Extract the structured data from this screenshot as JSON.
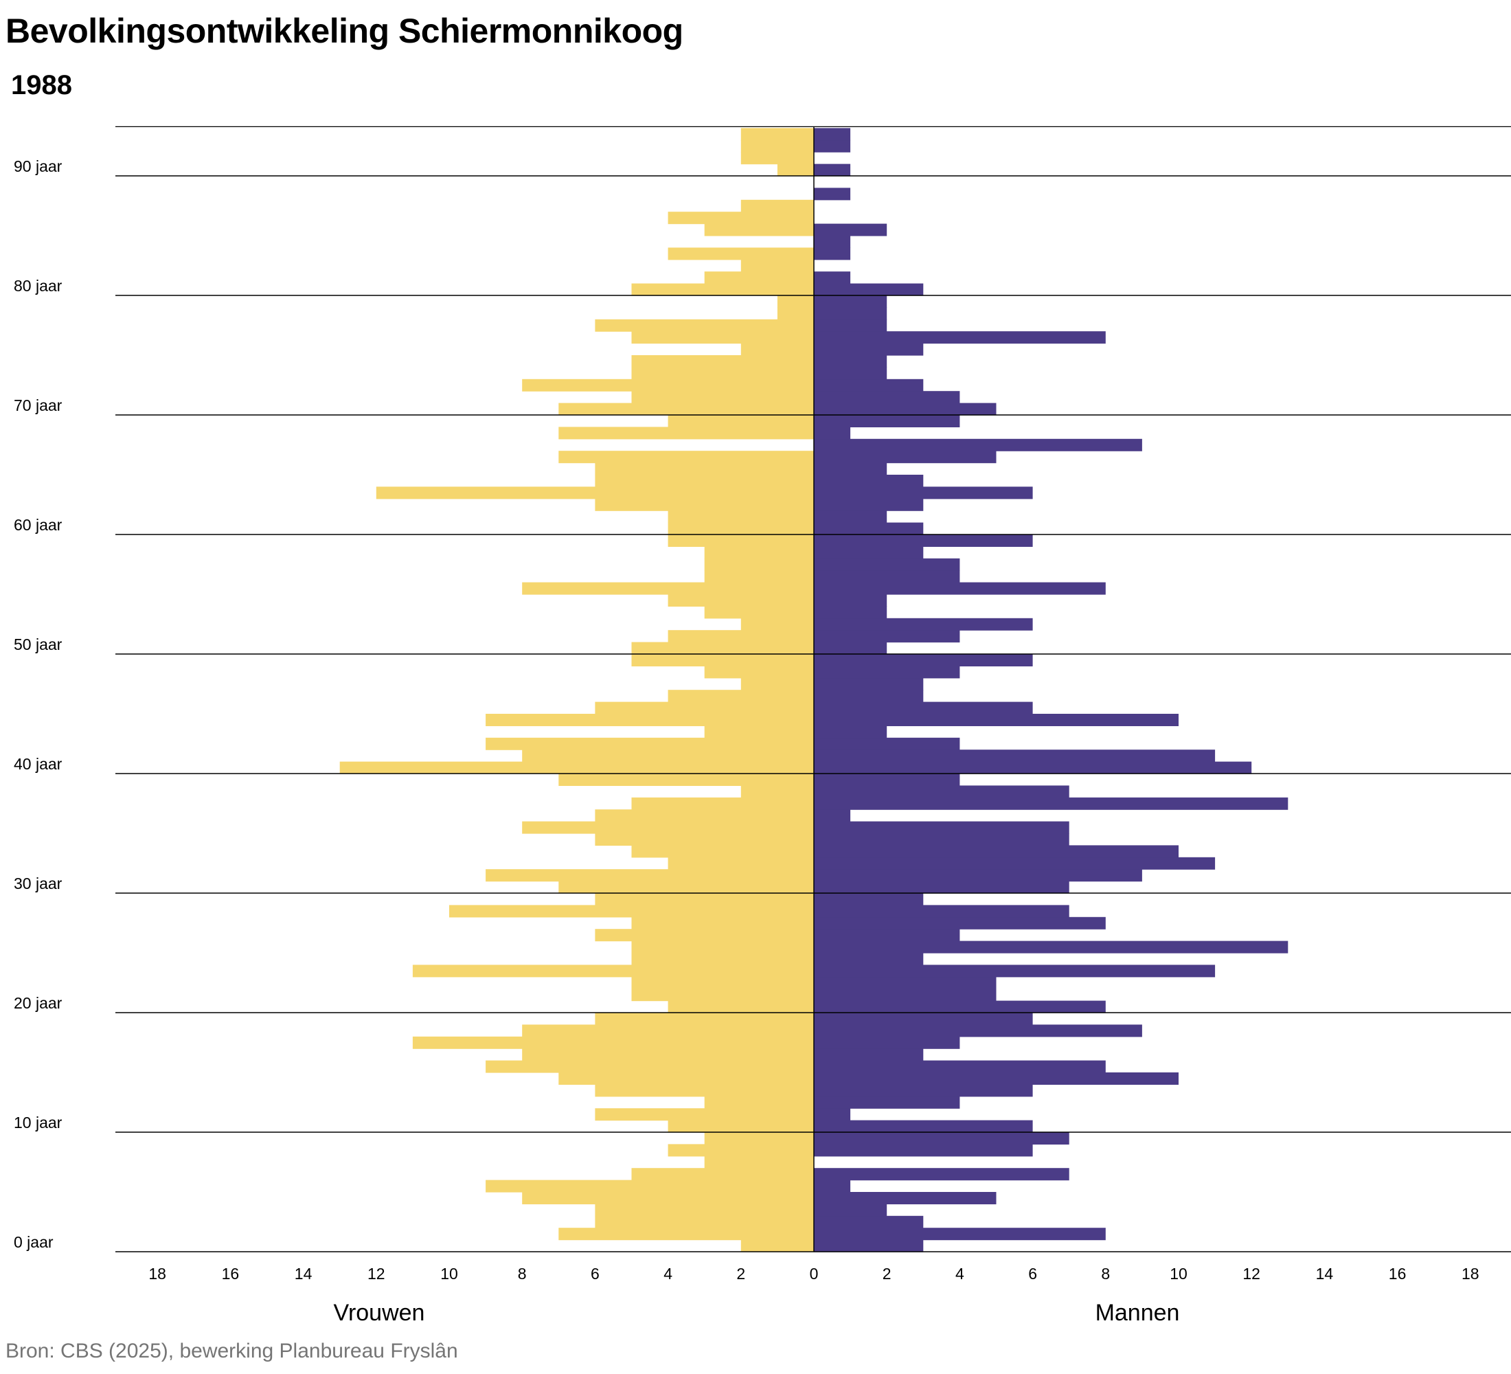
{
  "title": "Bevolkingsontwikkeling Schiermonnikoog",
  "year": "1988",
  "source": "Bron: CBS (2025), bewerking Planbureau Fryslân",
  "colors": {
    "women": "#f5d66e",
    "men": "#4b3c87",
    "grid": "#000000"
  },
  "chart_data": {
    "type": "bar",
    "orientation": "horizontal",
    "layout": "population-pyramid",
    "title": "Bevolkingsontwikkeling Schiermonnikoog",
    "subtitle": "1988",
    "ages": [
      0,
      1,
      2,
      3,
      4,
      5,
      6,
      7,
      8,
      9,
      10,
      11,
      12,
      13,
      14,
      15,
      16,
      17,
      18,
      19,
      20,
      21,
      22,
      23,
      24,
      25,
      26,
      27,
      28,
      29,
      30,
      31,
      32,
      33,
      34,
      35,
      36,
      37,
      38,
      39,
      40,
      41,
      42,
      43,
      44,
      45,
      46,
      47,
      48,
      49,
      50,
      51,
      52,
      53,
      54,
      55,
      56,
      57,
      58,
      59,
      60,
      61,
      62,
      63,
      64,
      65,
      66,
      67,
      68,
      69,
      70,
      71,
      72,
      73,
      74,
      75,
      76,
      77,
      78,
      79,
      80,
      81,
      82,
      83,
      84,
      85,
      86,
      87,
      88,
      89,
      90,
      91,
      92,
      93
    ],
    "series": [
      {
        "name": "Vrouwen",
        "side": "left",
        "values": [
          2,
          7,
          6,
          6,
          8,
          9,
          5,
          3,
          4,
          3,
          4,
          6,
          3,
          6,
          7,
          9,
          8,
          11,
          8,
          6,
          4,
          5,
          5,
          11,
          5,
          5,
          6,
          5,
          10,
          6,
          7,
          9,
          4,
          5,
          6,
          8,
          6,
          5,
          2,
          7,
          13,
          8,
          9,
          3,
          9,
          6,
          4,
          2,
          3,
          5,
          5,
          4,
          2,
          3,
          4,
          8,
          3,
          3,
          3,
          4,
          4,
          4,
          6,
          12,
          6,
          6,
          7,
          0,
          7,
          4,
          7,
          5,
          8,
          5,
          5,
          2,
          5,
          6,
          1,
          1,
          5,
          3,
          2,
          4,
          0,
          3,
          4,
          2,
          0,
          0,
          1,
          2,
          2,
          2
        ]
      },
      {
        "name": "Mannen",
        "side": "right",
        "values": [
          3,
          8,
          3,
          2,
          5,
          1,
          7,
          0,
          6,
          7,
          6,
          1,
          4,
          6,
          10,
          8,
          3,
          4,
          9,
          6,
          8,
          5,
          5,
          11,
          3,
          13,
          4,
          8,
          7,
          3,
          7,
          9,
          11,
          10,
          7,
          7,
          1,
          13,
          7,
          4,
          12,
          11,
          4,
          2,
          10,
          6,
          3,
          3,
          4,
          6,
          2,
          4,
          6,
          2,
          2,
          8,
          4,
          4,
          3,
          6,
          3,
          2,
          3,
          6,
          3,
          2,
          5,
          9,
          1,
          4,
          5,
          4,
          3,
          2,
          2,
          3,
          8,
          2,
          2,
          2,
          3,
          1,
          0,
          1,
          1,
          2,
          0,
          0,
          1,
          0,
          1,
          0,
          1,
          1
        ]
      }
    ],
    "x_axis": {
      "range": [
        -18,
        18
      ],
      "ticks": [
        18,
        16,
        14,
        12,
        10,
        8,
        6,
        4,
        2,
        0,
        2,
        4,
        6,
        8,
        10,
        12,
        14,
        16,
        18
      ]
    },
    "y_axis": {
      "labels": [
        "0 jaar",
        "10 jaar",
        "20 jaar",
        "30 jaar",
        "40 jaar",
        "50 jaar",
        "60 jaar",
        "70 jaar",
        "80 jaar",
        "90 jaar"
      ]
    },
    "side_labels": [
      "Vrouwen",
      "Mannen"
    ],
    "grid": "horizontal every 10 years"
  }
}
